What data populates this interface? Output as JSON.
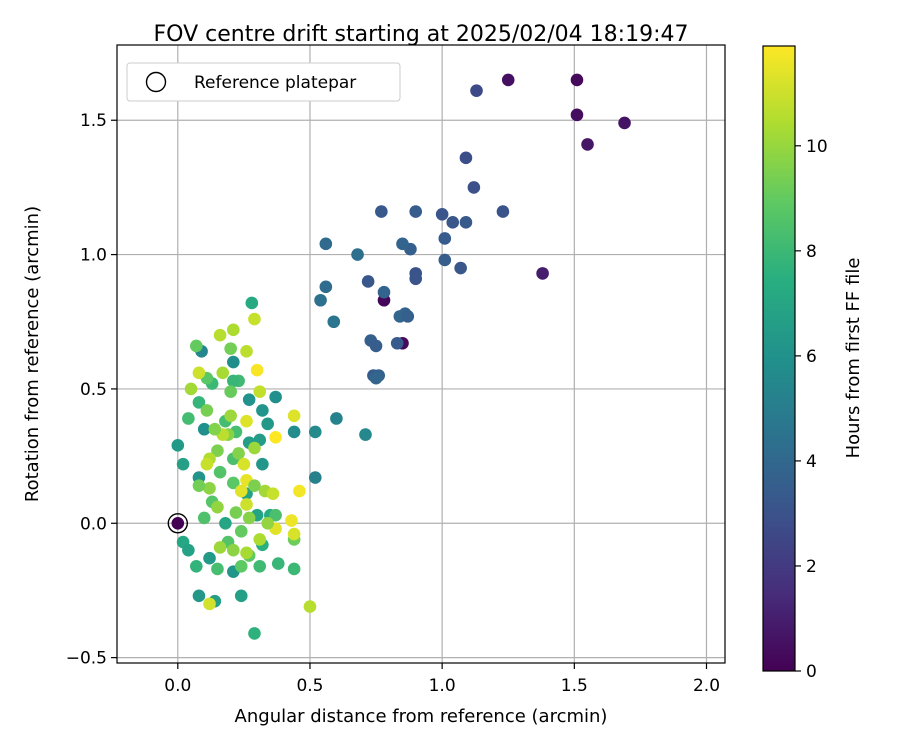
{
  "chart_data": {
    "type": "scatter",
    "title": "FOV centre drift starting at 2025/02/04 18:19:47",
    "xlabel": "Angular distance from reference (arcmin)",
    "ylabel": "Rotation from reference (arcmin)",
    "colorbar_label": "Hours from first FF file",
    "colormap": "viridis",
    "xlim": [
      -0.23,
      2.07
    ],
    "ylim": [
      -0.52,
      1.78
    ],
    "clim": [
      0,
      11.9
    ],
    "x_ticks": [
      0.0,
      0.5,
      1.0,
      1.5,
      2.0
    ],
    "x_tick_labels": [
      "0.0",
      "0.5",
      "1.0",
      "1.5",
      "2.0"
    ],
    "y_ticks": [
      -0.5,
      0.0,
      0.5,
      1.0,
      1.5
    ],
    "y_tick_labels": [
      "−0.5",
      "0.0",
      "0.5",
      "1.0",
      "1.5"
    ],
    "colorbar_ticks": [
      0,
      2,
      4,
      6,
      8,
      10
    ],
    "colorbar_tick_labels": [
      "0",
      "2",
      "4",
      "6",
      "8",
      "10"
    ],
    "grid": true,
    "legend": {
      "position": "top-left",
      "entries": [
        "Reference platepar"
      ]
    },
    "reference_point": {
      "x": 0.0,
      "y": 0.0,
      "hours": 0
    },
    "points": [
      [
        1.51,
        1.65,
        0.3
      ],
      [
        1.25,
        1.65,
        0.5
      ],
      [
        1.69,
        1.49,
        0.6
      ],
      [
        1.51,
        1.52,
        0.4
      ],
      [
        1.55,
        1.41,
        0.7
      ],
      [
        1.38,
        0.93,
        0.9
      ],
      [
        0.78,
        0.83,
        0.2
      ],
      [
        0.85,
        0.67,
        0.3
      ],
      [
        1.13,
        1.61,
        2.6
      ],
      [
        1.09,
        1.36,
        2.8
      ],
      [
        1.12,
        1.25,
        2.9
      ],
      [
        1.23,
        1.16,
        3.0
      ],
      [
        1.0,
        1.15,
        3.1
      ],
      [
        1.04,
        1.12,
        3.2
      ],
      [
        1.09,
        1.12,
        3.3
      ],
      [
        1.01,
        1.06,
        3.4
      ],
      [
        0.9,
        1.16,
        3.5
      ],
      [
        0.77,
        1.16,
        3.3
      ],
      [
        0.88,
        1.02,
        3.6
      ],
      [
        1.01,
        0.98,
        3.5
      ],
      [
        1.07,
        0.95,
        3.2
      ],
      [
        0.9,
        0.93,
        3.0
      ],
      [
        0.9,
        0.91,
        3.1
      ],
      [
        0.72,
        0.9,
        3.2
      ],
      [
        0.78,
        0.86,
        3.8
      ],
      [
        0.86,
        0.78,
        3.7
      ],
      [
        0.84,
        0.77,
        3.9
      ],
      [
        0.87,
        0.77,
        3.6
      ],
      [
        0.83,
        0.67,
        3.4
      ],
      [
        0.73,
        0.68,
        3.6
      ],
      [
        0.75,
        0.66,
        3.5
      ],
      [
        0.74,
        0.55,
        3.4
      ],
      [
        0.76,
        0.55,
        3.7
      ],
      [
        0.75,
        0.54,
        3.9
      ],
      [
        0.56,
        1.04,
        4.1
      ],
      [
        0.68,
        1.0,
        4.3
      ],
      [
        0.56,
        0.88,
        4.2
      ],
      [
        0.54,
        0.83,
        4.4
      ],
      [
        0.59,
        0.75,
        4.6
      ],
      [
        0.85,
        1.04,
        3.8
      ],
      [
        0.6,
        0.39,
        5.3
      ],
      [
        0.71,
        0.33,
        5.5
      ],
      [
        0.52,
        0.34,
        5.6
      ],
      [
        0.44,
        0.34,
        5.7
      ],
      [
        0.52,
        0.17,
        5.2
      ],
      [
        0.28,
        0.82,
        7.2
      ],
      [
        0.09,
        0.64,
        5.4
      ],
      [
        0.21,
        0.6,
        5.8
      ],
      [
        0.37,
        0.47,
        5.9
      ],
      [
        0.27,
        0.46,
        6.0
      ],
      [
        0.32,
        0.42,
        6.1
      ],
      [
        0.34,
        0.37,
        6.3
      ],
      [
        0.31,
        0.31,
        6.5
      ],
      [
        0.27,
        0.3,
        6.6
      ],
      [
        0.32,
        0.22,
        6.2
      ],
      [
        0.0,
        0.29,
        6.4
      ],
      [
        0.02,
        0.22,
        6.7
      ],
      [
        0.08,
        0.17,
        6.1
      ],
      [
        0.1,
        0.35,
        5.9
      ],
      [
        0.26,
        0.11,
        6.8
      ],
      [
        0.18,
        0.0,
        7.0
      ],
      [
        0.3,
        0.03,
        6.9
      ],
      [
        0.02,
        -0.07,
        7.1
      ],
      [
        0.04,
        -0.1,
        6.8
      ],
      [
        0.08,
        -0.27,
        6.3
      ],
      [
        0.14,
        -0.29,
        6.6
      ],
      [
        0.12,
        -0.13,
        6.4
      ],
      [
        0.21,
        -0.18,
        6.2
      ],
      [
        0.24,
        -0.27,
        6.7
      ],
      [
        0.29,
        -0.41,
        7.6
      ],
      [
        0.32,
        -0.08,
        7.5
      ],
      [
        0.35,
        0.03,
        7.3
      ],
      [
        0.08,
        0.45,
        7.8
      ],
      [
        0.13,
        0.52,
        8.0
      ],
      [
        0.23,
        0.53,
        8.1
      ],
      [
        0.21,
        0.53,
        7.9
      ],
      [
        0.18,
        0.38,
        8.2
      ],
      [
        0.22,
        0.34,
        8.3
      ],
      [
        0.21,
        0.24,
        8.4
      ],
      [
        0.16,
        0.19,
        8.6
      ],
      [
        0.21,
        0.15,
        8.8
      ],
      [
        0.13,
        0.08,
        8.7
      ],
      [
        0.1,
        0.02,
        8.5
      ],
      [
        0.27,
        -0.12,
        8.9
      ],
      [
        0.24,
        -0.03,
        9.0
      ],
      [
        0.31,
        -0.16,
        8.1
      ],
      [
        0.38,
        -0.15,
        7.9
      ],
      [
        0.44,
        -0.17,
        8.0
      ],
      [
        0.37,
        0.03,
        8.4
      ],
      [
        0.44,
        -0.06,
        9.2
      ],
      [
        0.15,
        -0.17,
        8.3
      ],
      [
        0.19,
        -0.07,
        8.6
      ],
      [
        0.24,
        -0.16,
        8.9
      ],
      [
        0.07,
        -0.16,
        7.7
      ],
      [
        0.07,
        0.66,
        9.0
      ],
      [
        0.11,
        0.54,
        8.8
      ],
      [
        0.2,
        0.65,
        9.3
      ],
      [
        0.2,
        0.49,
        9.1
      ],
      [
        0.04,
        0.39,
        8.2
      ],
      [
        0.11,
        0.42,
        9.4
      ],
      [
        0.15,
        0.27,
        9.5
      ],
      [
        0.23,
        0.26,
        9.6
      ],
      [
        0.19,
        0.33,
        9.7
      ],
      [
        0.12,
        0.13,
        9.8
      ],
      [
        0.08,
        0.14,
        9.3
      ],
      [
        0.15,
        0.06,
        9.9
      ],
      [
        0.22,
        0.04,
        9.4
      ],
      [
        0.27,
        0.02,
        9.7
      ],
      [
        0.33,
        0.12,
        10.2
      ],
      [
        0.31,
        -0.06,
        10.4
      ],
      [
        0.16,
        -0.09,
        10.1
      ],
      [
        0.26,
        -0.11,
        10.3
      ],
      [
        0.21,
        -0.1,
        9.8
      ],
      [
        0.12,
        0.24,
        10.5
      ],
      [
        0.29,
        0.28,
        10.1
      ],
      [
        0.05,
        0.5,
        10.2
      ],
      [
        0.16,
        0.7,
        10.6
      ],
      [
        0.21,
        0.72,
        10.4
      ],
      [
        0.29,
        0.76,
        10.9
      ],
      [
        0.26,
        0.64,
        10.7
      ],
      [
        0.17,
        0.56,
        10.3
      ],
      [
        0.31,
        0.49,
        10.8
      ],
      [
        0.2,
        0.4,
        10.1
      ],
      [
        0.26,
        0.38,
        11.3
      ],
      [
        0.08,
        0.56,
        11.0
      ],
      [
        0.17,
        0.33,
        10.7
      ],
      [
        0.25,
        0.22,
        11.2
      ],
      [
        0.36,
        0.11,
        10.9
      ],
      [
        0.5,
        -0.31,
        10.6
      ],
      [
        0.12,
        -0.3,
        11.1
      ],
      [
        0.26,
        0.16,
        11.5
      ],
      [
        0.24,
        0.12,
        11.4
      ],
      [
        0.26,
        0.07,
        11.0
      ],
      [
        0.43,
        0.01,
        11.6
      ],
      [
        0.44,
        -0.04,
        11.2
      ],
      [
        0.46,
        0.12,
        11.7
      ],
      [
        0.37,
        -0.02,
        11.4
      ],
      [
        0.3,
        0.57,
        11.8
      ],
      [
        0.37,
        0.32,
        11.9
      ],
      [
        0.44,
        0.4,
        11.3
      ],
      [
        0.11,
        0.22,
        10.9
      ],
      [
        0.14,
        0.35,
        9.6
      ],
      [
        0.29,
        0.14,
        9.5
      ],
      [
        0.34,
        0.0,
        9.9
      ]
    ]
  }
}
